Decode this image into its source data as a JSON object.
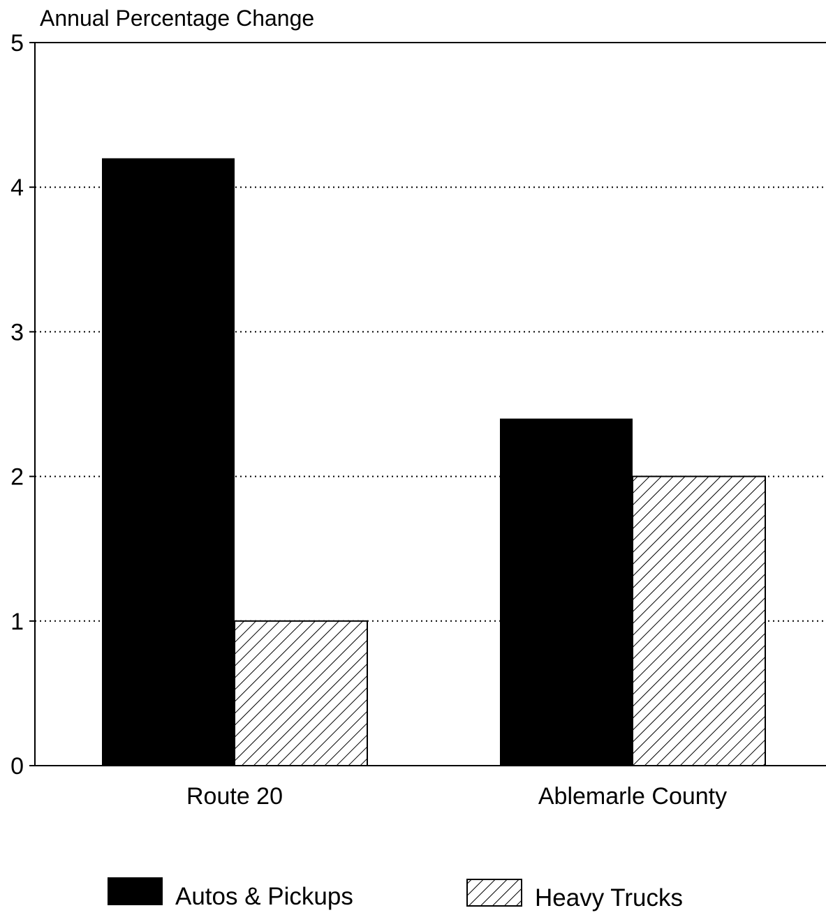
{
  "chart_data": {
    "type": "bar",
    "title": "",
    "xlabel": "",
    "ylabel": "Annual Percentage Change",
    "categories": [
      "Route 20",
      "Ablemarle County"
    ],
    "series": [
      {
        "name": "Autos & Pickups",
        "values": [
          4.2,
          2.4
        ],
        "fill": "solid",
        "color": "#000000"
      },
      {
        "name": "Heavy Trucks",
        "values": [
          1.0,
          2.0
        ],
        "fill": "hatch",
        "color": "#000000"
      }
    ],
    "ylim": [
      0,
      5
    ],
    "yticks": [
      "0",
      "1",
      "2",
      "3",
      "4",
      "5"
    ],
    "grid": "horizontal-dotted",
    "legend_position": "bottom"
  }
}
